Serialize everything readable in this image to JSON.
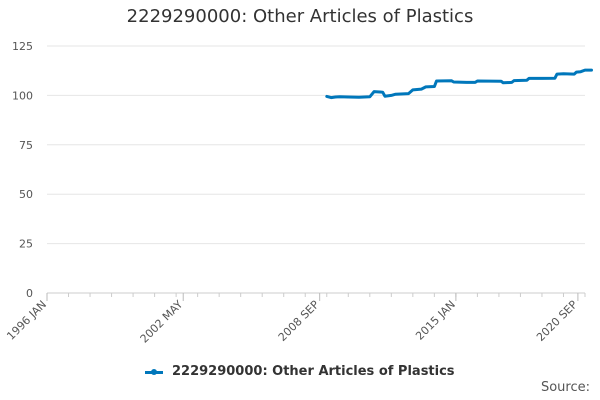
{
  "chart_data": {
    "type": "line",
    "title": "2229290000: Other Articles of Plastics",
    "xlabel": "",
    "ylabel": "",
    "ylim": [
      0,
      125
    ],
    "yticks": [
      0,
      25,
      50,
      75,
      100,
      125
    ],
    "xlim": [
      1996.0,
      2021.0
    ],
    "xticks": [
      {
        "label": "1996 JAN",
        "value": 1996.0
      },
      {
        "label": "2002 MAY",
        "value": 2002.33
      },
      {
        "label": "2008 SEP",
        "value": 2008.67
      },
      {
        "label": "2015 JAN",
        "value": 2015.0
      },
      {
        "label": "2020 SEP",
        "value": 2020.67
      }
    ],
    "grid": true,
    "legend": "bottom",
    "series": [
      {
        "name": "2229290000: Other Articles of Plastics",
        "color": "#0077bb",
        "points": [
          [
            2009.0,
            99.5
          ],
          [
            2009.2,
            98.9
          ],
          [
            2009.4,
            99.2
          ],
          [
            2009.6,
            99.3
          ],
          [
            2010.0,
            99.2
          ],
          [
            2010.5,
            99.1
          ],
          [
            2011.0,
            99.3
          ],
          [
            2011.2,
            101.9
          ],
          [
            2011.6,
            101.6
          ],
          [
            2011.7,
            99.6
          ],
          [
            2012.0,
            100.0
          ],
          [
            2012.2,
            100.6
          ],
          [
            2012.8,
            100.9
          ],
          [
            2013.0,
            102.8
          ],
          [
            2013.4,
            103.2
          ],
          [
            2013.6,
            104.3
          ],
          [
            2014.0,
            104.5
          ],
          [
            2014.1,
            107.3
          ],
          [
            2014.8,
            107.4
          ],
          [
            2014.9,
            106.8
          ],
          [
            2015.5,
            106.6
          ],
          [
            2015.9,
            106.6
          ],
          [
            2016.0,
            107.3
          ],
          [
            2017.1,
            107.2
          ],
          [
            2017.2,
            106.4
          ],
          [
            2017.6,
            106.6
          ],
          [
            2017.7,
            107.5
          ],
          [
            2018.3,
            107.7
          ],
          [
            2018.4,
            108.6
          ],
          [
            2019.0,
            108.6
          ],
          [
            2019.6,
            108.7
          ],
          [
            2019.7,
            110.8
          ],
          [
            2020.0,
            111.0
          ],
          [
            2020.5,
            110.8
          ],
          [
            2020.6,
            111.8
          ],
          [
            2020.8,
            112.0
          ],
          [
            2021.0,
            112.8
          ],
          [
            2021.3,
            112.8
          ]
        ]
      }
    ]
  },
  "source_label": "Source:"
}
